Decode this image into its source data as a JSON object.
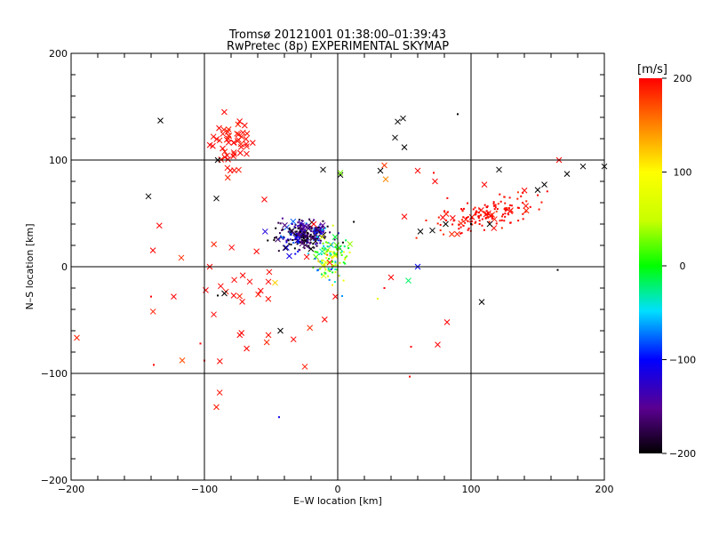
{
  "chart_data": {
    "type": "scatter",
    "title": "Tromsø 20121001 01:38:00–01:39:43",
    "subtitle": "RwPretec (8p) EXPERIMENTAL SKYMAP",
    "xlabel": "E–W location [km]",
    "ylabel": "N–S location [km]",
    "xlim": [
      -200,
      200
    ],
    "ylim": [
      -200,
      200
    ],
    "xticks": [
      -200,
      -100,
      0,
      100,
      200
    ],
    "yticks": [
      -200,
      -100,
      0,
      100,
      200
    ],
    "grid": true,
    "colorbar": {
      "label": "[m/s]",
      "range": [
        -200,
        200
      ],
      "ticks": [
        200,
        100,
        0,
        -100,
        -200
      ],
      "colormap": "black-purple-blue-cyan-green-yellow-orange-red"
    },
    "markers": "x marks = large echoes, dots = small echoes",
    "clusters": [
      {
        "cx": -80,
        "cy": 115,
        "sx": 8,
        "sy": 12,
        "n": 50,
        "v": 200,
        "jitter": 8,
        "mark": "x"
      },
      {
        "cx": -26,
        "cy": 30,
        "sx": 10,
        "sy": 6,
        "n": 260,
        "v": -160,
        "jitter": 40,
        "mark": "dot"
      },
      {
        "cx": -5,
        "cy": 8,
        "sx": 6,
        "sy": 12,
        "n": 120,
        "v": 10,
        "jitter": 50,
        "mark": "dot"
      },
      {
        "cx": 110,
        "cy": 48,
        "sx": 18,
        "sy": 7,
        "n": 150,
        "v": 200,
        "jitter": 10,
        "mark": "dot",
        "tilt": 0.3
      },
      {
        "cx": -70,
        "cy": -40,
        "sx": 40,
        "sy": 35,
        "n": 35,
        "v": 200,
        "jitter": 10,
        "mark": "x"
      }
    ],
    "points": [
      {
        "x": -133,
        "y": 137,
        "v": -200,
        "m": "x"
      },
      {
        "x": -142,
        "y": 66,
        "v": -200,
        "m": "x"
      },
      {
        "x": -91,
        "y": 64,
        "v": -200,
        "m": "x"
      },
      {
        "x": -90,
        "y": 100,
        "v": -200,
        "m": "x"
      },
      {
        "x": -43,
        "y": -60,
        "v": -200,
        "m": "x"
      },
      {
        "x": 45,
        "y": 136,
        "v": -200,
        "m": "x"
      },
      {
        "x": 49,
        "y": 139,
        "v": -200,
        "m": "x"
      },
      {
        "x": 43,
        "y": 121,
        "v": -200,
        "m": "x"
      },
      {
        "x": 32,
        "y": 90,
        "v": -200,
        "m": "x"
      },
      {
        "x": 50,
        "y": 112,
        "v": -200,
        "m": "x"
      },
      {
        "x": 90,
        "y": 143,
        "v": -200,
        "m": "dot"
      },
      {
        "x": 121,
        "y": 91,
        "v": -200,
        "m": "x"
      },
      {
        "x": 108,
        "y": -33,
        "v": -200,
        "m": "x"
      },
      {
        "x": 165,
        "y": -3,
        "v": -200,
        "m": "dot"
      },
      {
        "x": 172,
        "y": 87,
        "v": -200,
        "m": "x"
      },
      {
        "x": 184,
        "y": 94,
        "v": -200,
        "m": "x"
      },
      {
        "x": 200,
        "y": 94,
        "v": -200,
        "m": "x"
      },
      {
        "x": 155,
        "y": 77,
        "v": -200,
        "m": "x"
      },
      {
        "x": 150,
        "y": 72,
        "v": -200,
        "m": "x"
      },
      {
        "x": 114,
        "y": 40,
        "v": -200,
        "m": "x"
      },
      {
        "x": 81,
        "y": 40,
        "v": -200,
        "m": "x"
      },
      {
        "x": 71,
        "y": 34,
        "v": -200,
        "m": "x"
      },
      {
        "x": 62,
        "y": 33,
        "v": -200,
        "m": "x"
      },
      {
        "x": -11,
        "y": 91,
        "v": -200,
        "m": "x"
      },
      {
        "x": -44,
        "y": -141,
        "v": -110,
        "m": "dot"
      },
      {
        "x": 60,
        "y": 0,
        "v": -100,
        "m": "x"
      },
      {
        "x": 53,
        "y": -13,
        "v": -20,
        "m": "x"
      },
      {
        "x": 36,
        "y": 82,
        "v": 150,
        "m": "x"
      },
      {
        "x": 2,
        "y": 86,
        "v": -200,
        "m": "x"
      },
      {
        "x": 2,
        "y": 88,
        "v": 30,
        "m": "x"
      },
      {
        "x": 35,
        "y": 95,
        "v": 180,
        "m": "x"
      },
      {
        "x": 60,
        "y": 90,
        "v": 200,
        "m": "x"
      },
      {
        "x": 72,
        "y": 88,
        "v": 200,
        "m": "dot"
      },
      {
        "x": 50,
        "y": 47,
        "v": 200,
        "m": "x"
      },
      {
        "x": 73,
        "y": 80,
        "v": 200,
        "m": "x"
      },
      {
        "x": 110,
        "y": 77,
        "v": 200,
        "m": "x"
      },
      {
        "x": 166,
        "y": 100,
        "v": 200,
        "m": "x"
      },
      {
        "x": 82,
        "y": -52,
        "v": 200,
        "m": "x"
      },
      {
        "x": 75,
        "y": -73,
        "v": 200,
        "m": "x"
      },
      {
        "x": 55,
        "y": -75,
        "v": 200,
        "m": "dot"
      },
      {
        "x": 54,
        "y": -103,
        "v": 200,
        "m": "dot"
      },
      {
        "x": 40,
        "y": -10,
        "v": 200,
        "m": "x"
      },
      {
        "x": 35,
        "y": -20,
        "v": 200,
        "m": "dot"
      },
      {
        "x": -55,
        "y": 63,
        "v": 200,
        "m": "x"
      },
      {
        "x": -18,
        "y": 40,
        "v": 200,
        "m": "x"
      },
      {
        "x": -123,
        "y": -28,
        "v": 200,
        "m": "x"
      },
      {
        "x": -96,
        "y": 0,
        "v": 200,
        "m": "x"
      },
      {
        "x": -99,
        "y": -22,
        "v": 200,
        "m": "x"
      },
      {
        "x": -78,
        "y": -27,
        "v": 200,
        "m": "x"
      },
      {
        "x": -52,
        "y": -14,
        "v": 200,
        "m": "x"
      },
      {
        "x": -47,
        "y": -15,
        "v": 120,
        "m": "x"
      },
      {
        "x": -66,
        "y": -14,
        "v": 200,
        "m": "x"
      },
      {
        "x": -103,
        "y": -72,
        "v": 200,
        "m": "dot"
      },
      {
        "x": -100,
        "y": -88,
        "v": 200,
        "m": "dot"
      },
      {
        "x": -140,
        "y": -28,
        "v": 200,
        "m": "dot"
      },
      {
        "x": -138,
        "y": -92,
        "v": 200,
        "m": "dot"
      },
      {
        "x": -85,
        "y": -25,
        "v": -200,
        "m": "x"
      },
      {
        "x": -90,
        "y": -27,
        "v": -200,
        "m": "dot"
      },
      {
        "x": 30,
        "y": -30,
        "v": 80,
        "m": "dot"
      },
      {
        "x": 100,
        "y": 40,
        "v": -200,
        "m": "dot"
      }
    ]
  }
}
